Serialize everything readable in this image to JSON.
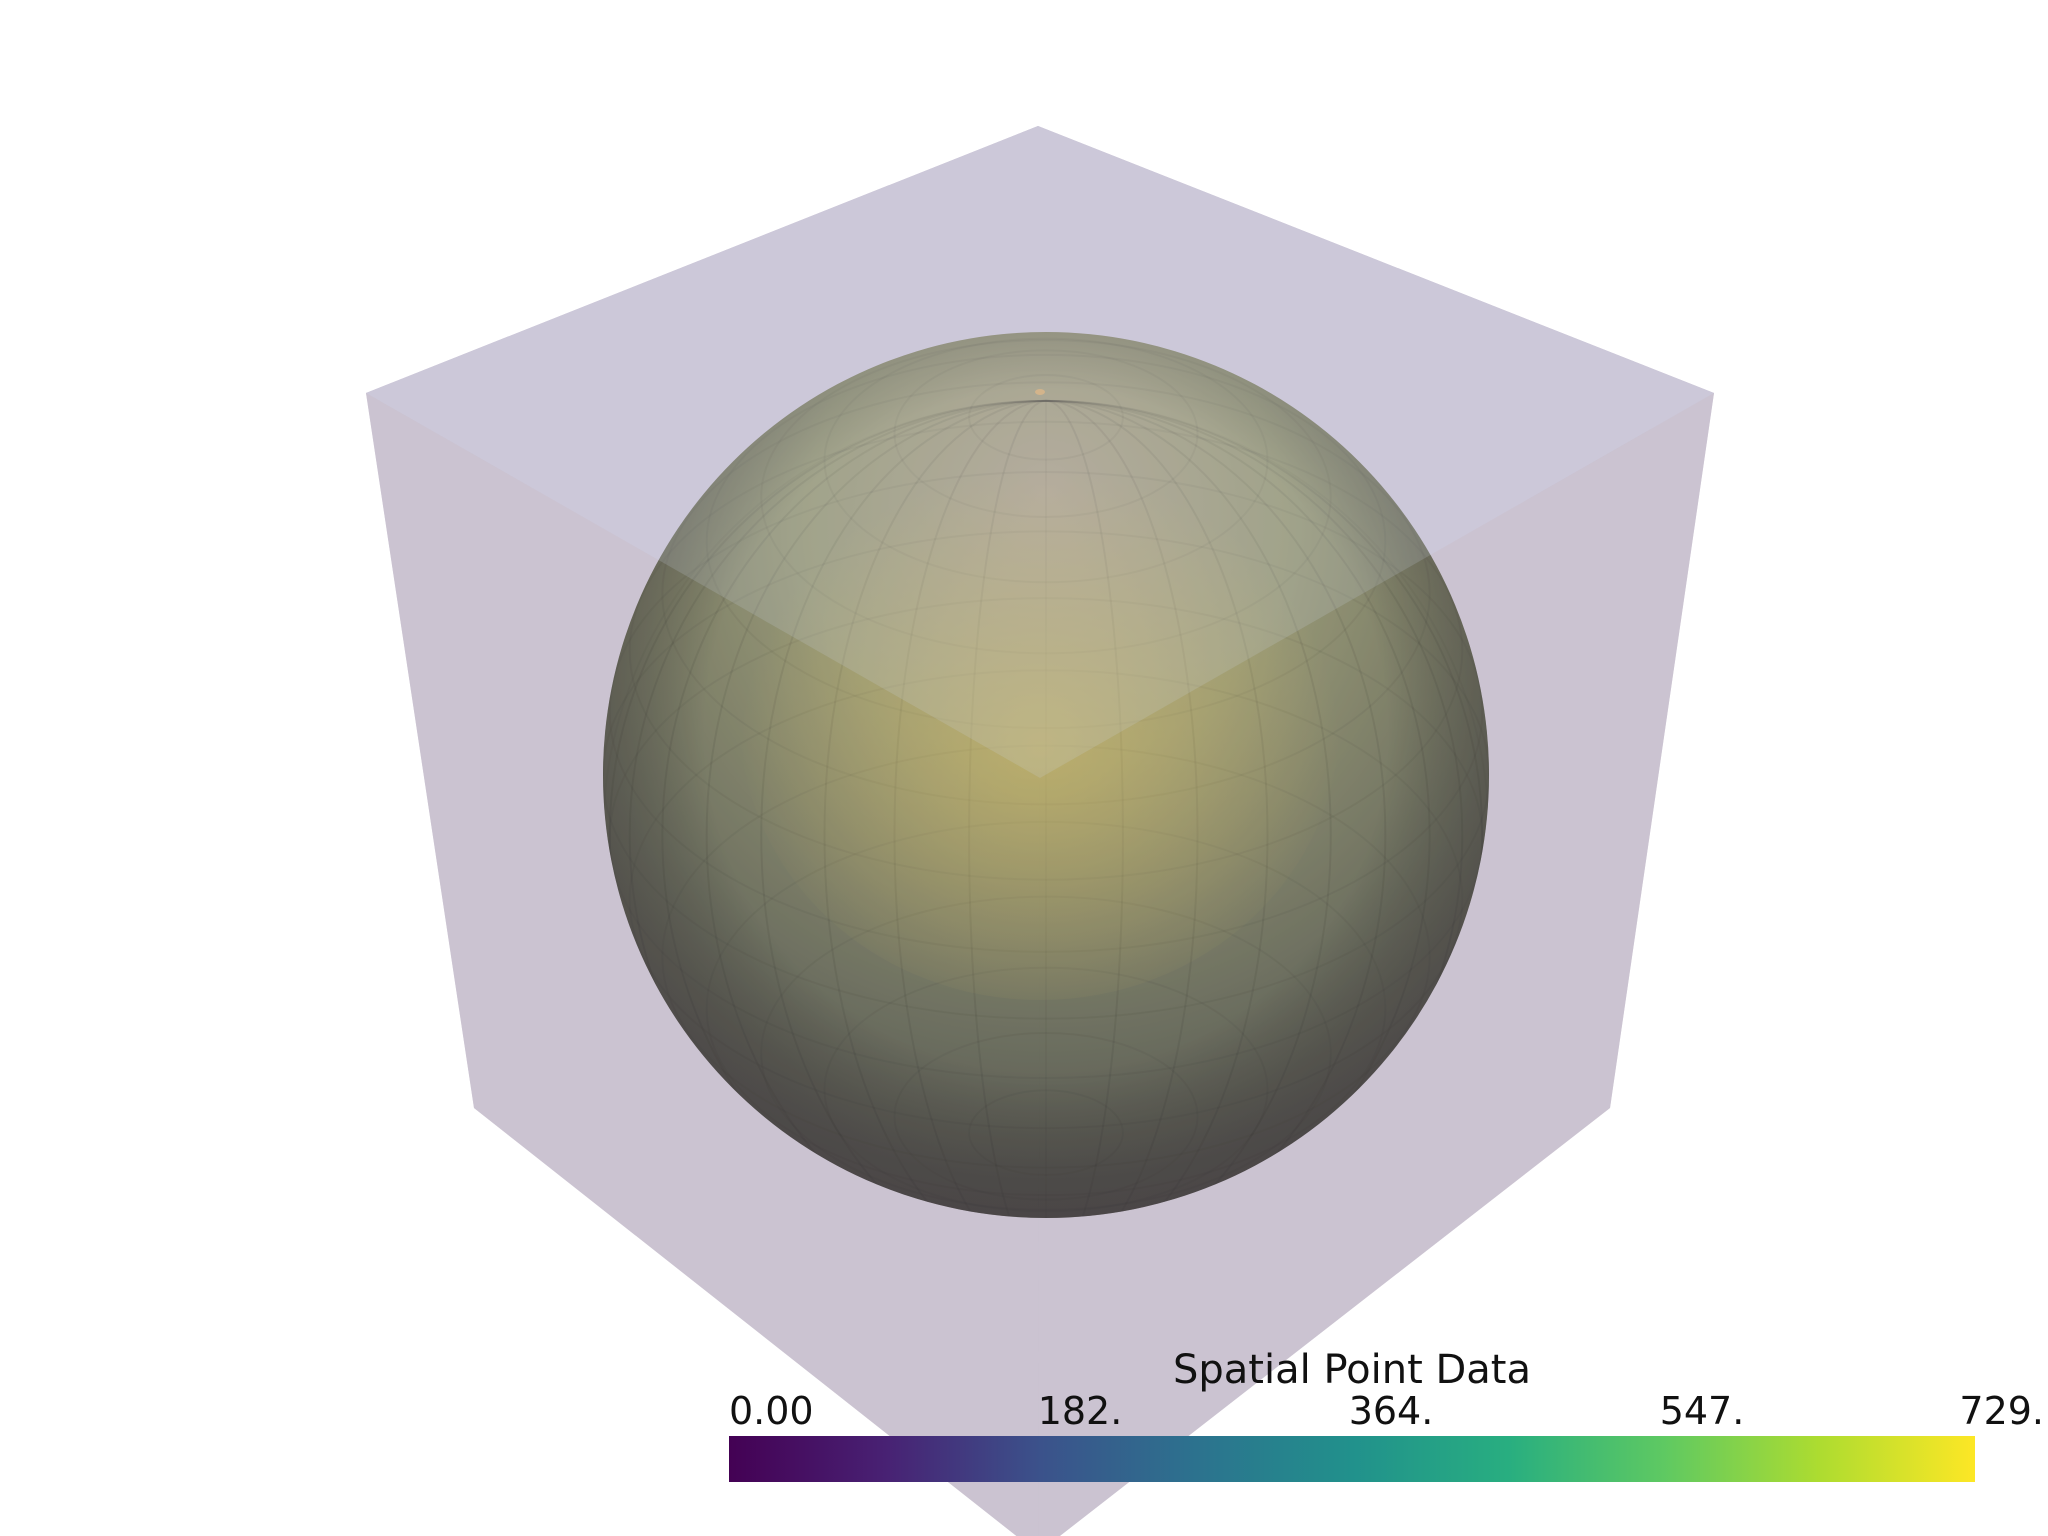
{
  "scene": {
    "background": "#ffffff",
    "box_color": "#c9bfd1",
    "sphere_colors": {
      "top_highlight": "#a89b80",
      "mid": "#8f9368",
      "bottom": "#3b3f3a",
      "edge_shadow": "#3e3a3a",
      "inner_glow": "#c8b35a"
    }
  },
  "colorbar": {
    "title": "Spatial Point Data",
    "colormap": "viridis",
    "range": [
      0,
      729
    ],
    "tick_labels": [
      "0.00",
      "182.",
      "364.",
      "547.",
      "729."
    ]
  }
}
